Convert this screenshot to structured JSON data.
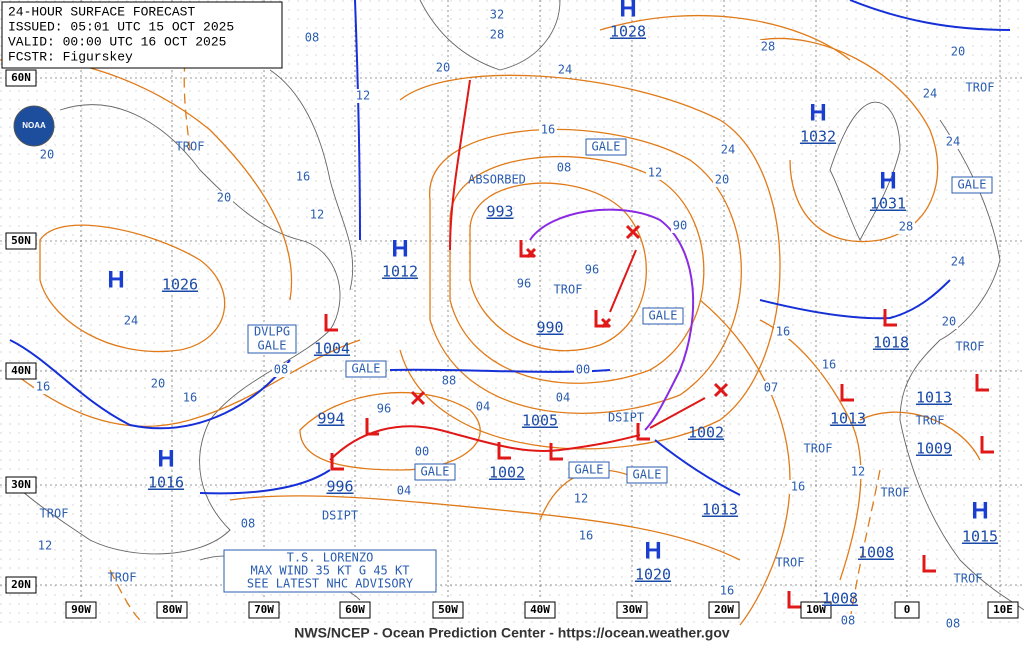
{
  "header": {
    "title": "24-HOUR SURFACE FORECAST",
    "issued": "ISSUED: 05:01 UTC 15 OCT 2025",
    "valid": "VALID:  00:00 UTC 16 OCT 2025",
    "forecaster": "FCSTR:  Figurskey"
  },
  "logo": "NOAA",
  "footer": "NWS/NCEP - Ocean Prediction Center - https://ocean.weather.gov",
  "latitude_labels": [
    "60N",
    "50N",
    "40N",
    "30N",
    "20N"
  ],
  "longitude_labels": [
    "90W",
    "80W",
    "70W",
    "60W",
    "50W",
    "40W",
    "30W",
    "20W",
    "10W",
    "0",
    "10E"
  ],
  "highs": [
    {
      "symbol": "H",
      "pressure": "1028"
    },
    {
      "symbol": "H",
      "pressure": "1032"
    },
    {
      "symbol": "H",
      "pressure": "1031"
    },
    {
      "symbol": "H",
      "pressure": "1012"
    },
    {
      "symbol": "H",
      "pressure": "1026"
    },
    {
      "symbol": "H",
      "pressure": "1016"
    },
    {
      "symbol": "H",
      "pressure": "1020"
    },
    {
      "symbol": "H",
      "pressure": "1015"
    }
  ],
  "lows": [
    "993",
    "990",
    "1004",
    "994",
    "996",
    "1005",
    "1002",
    "1002",
    "1013",
    "1018",
    "1013",
    "1013",
    "1009",
    "1008",
    "1008"
  ],
  "isobar_labels": [
    "32",
    "28",
    "08",
    "20",
    "24",
    "28",
    "16",
    "08",
    "12",
    "24",
    "20",
    "20",
    "20",
    "16",
    "12",
    "12",
    "96",
    "96",
    "90",
    "24",
    "20",
    "16",
    "16",
    "08",
    "88",
    "04",
    "00",
    "04",
    "96",
    "00",
    "04",
    "07",
    "16",
    "28",
    "24",
    "20",
    "16",
    "12",
    "16",
    "12",
    "16",
    "16",
    "08",
    "08",
    "12",
    "08",
    "20",
    "24",
    "24"
  ],
  "trofs": [
    "TROF",
    "TROF",
    "TROF",
    "TROF",
    "TROF",
    "TROF",
    "TROF",
    "TROF",
    "TROF",
    "TROF",
    "TROF"
  ],
  "gales": [
    "GALE",
    "GALE",
    "GALE",
    "GALE",
    "GALE",
    "GALE",
    "GALE"
  ],
  "developing_gale": [
    "DVLPG",
    "GALE"
  ],
  "annotations": {
    "absorbed": "ABSORBED",
    "dissipating": [
      "DSIPT",
      "DSIPT"
    ]
  },
  "storm_advisory": [
    "T.S. LORENZO",
    "MAX WIND 35 KT G 45 KT",
    "SEE LATEST NHC ADVISORY"
  ]
}
